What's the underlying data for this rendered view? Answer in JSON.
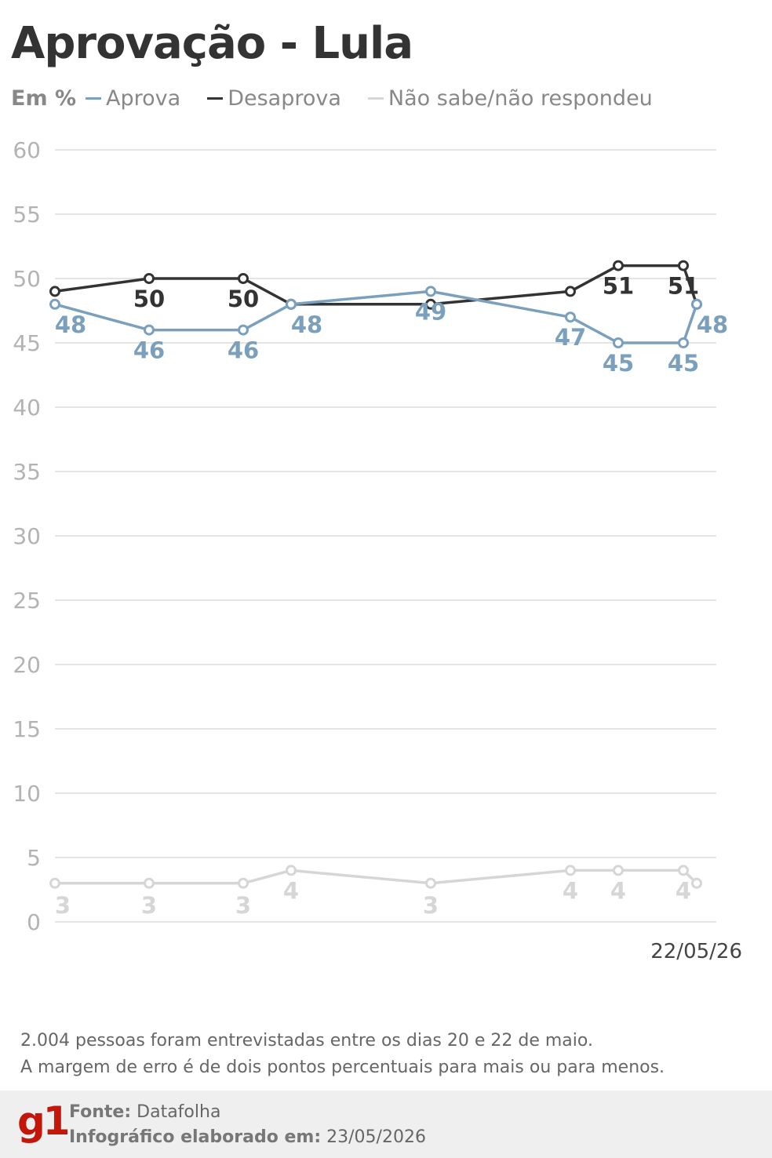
{
  "title": "Aprovação - Lula",
  "legend": {
    "unit": "Em %",
    "items": [
      {
        "label": "Aprova",
        "color": "#7aa0bd"
      },
      {
        "label": "Desaprova",
        "color": "#333333"
      },
      {
        "label": "Não sabe/não respondeu",
        "color": "#d6d6d6"
      }
    ]
  },
  "chart_data": {
    "type": "line",
    "ylim": [
      0,
      60
    ],
    "y_ticks": [
      0,
      5,
      10,
      15,
      20,
      25,
      30,
      35,
      40,
      45,
      50,
      55,
      60
    ],
    "x_last_label": "22/05/26",
    "grid": true,
    "series": [
      {
        "name": "Desaprova",
        "color": "#333333",
        "values": [
          49,
          50,
          50,
          48,
          48,
          49,
          51,
          51,
          48
        ],
        "labels": [
          "",
          "50",
          "50",
          "",
          "",
          "",
          "51",
          "51",
          ""
        ]
      },
      {
        "name": "Aprova",
        "color": "#7aa0bd",
        "values": [
          48,
          46,
          46,
          48,
          49,
          47,
          45,
          45,
          48
        ],
        "labels": [
          "48",
          "46",
          "46",
          "48",
          "49",
          "47",
          "45",
          "45",
          "48"
        ]
      },
      {
        "name": "Não sabe/não respondeu",
        "color": "#d6d6d6",
        "values": [
          3,
          3,
          3,
          4,
          3,
          4,
          4,
          4,
          3
        ],
        "labels": [
          "3",
          "3",
          "3",
          "4",
          "3",
          "4",
          "4",
          "4",
          ""
        ]
      }
    ]
  },
  "note": {
    "line1": "2.004 pessoas foram entrevistadas entre os dias 20 e 22 de maio.",
    "line2": "A margem de erro é de dois pontos percentuais para mais ou para menos."
  },
  "footer": {
    "logo": "g1",
    "source_label": "Fonte:",
    "source_value": "Datafolha",
    "date_label": "Infográfico elaborado em:",
    "date_value": "23/05/2026"
  }
}
